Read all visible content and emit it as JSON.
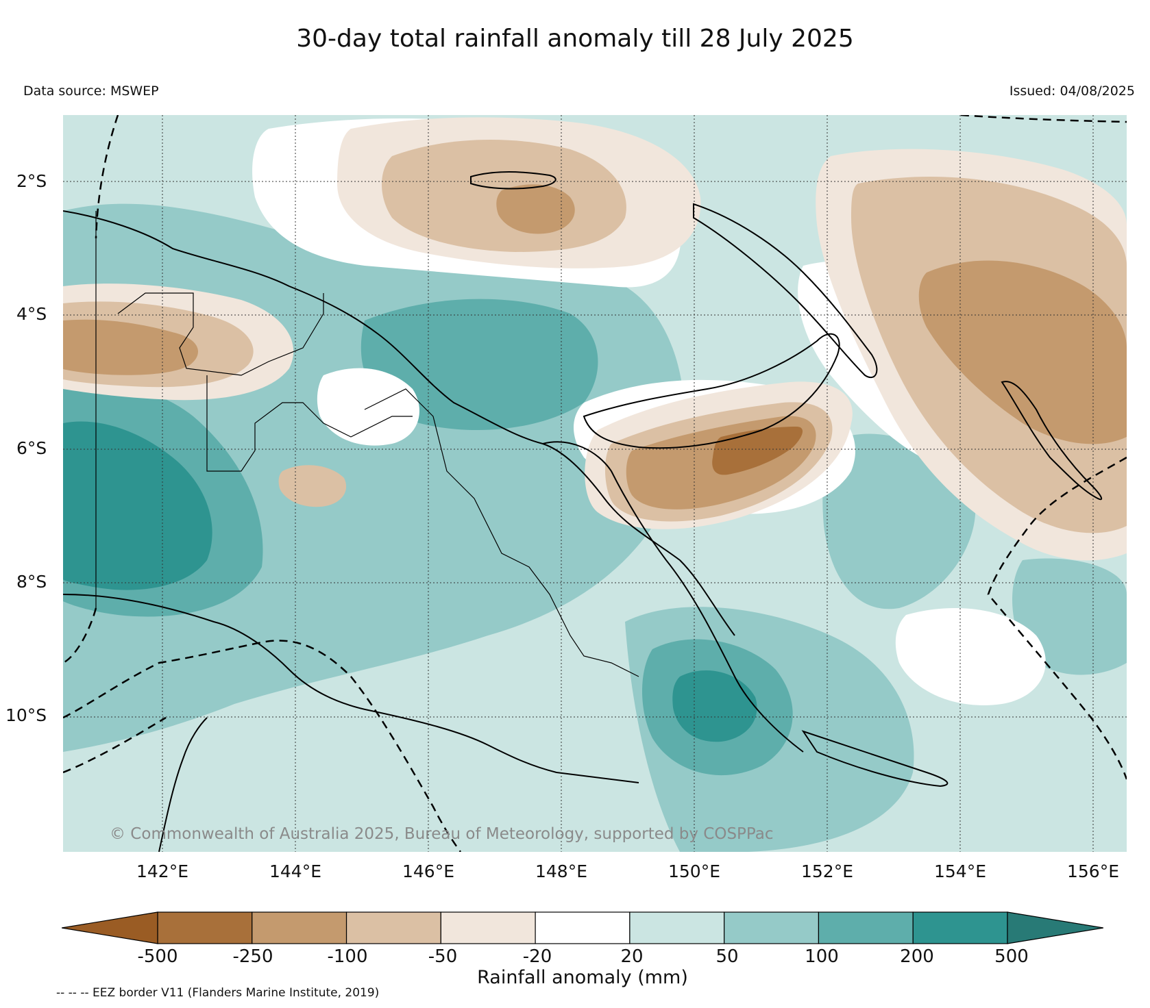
{
  "title": "30-day total rainfall anomaly till 28 July 2025",
  "data_source": "Data source: MSWEP",
  "issued": "Issued: 04/08/2025",
  "copyright": "© Commonwealth of Australia 2025, Bureau of Meteorology, supported by COSPPac",
  "eez_note": "-- -- -- EEZ border V11 (Flanders Marine Institute, 2019)",
  "map": {
    "lon_range": [
      140.6,
      156.6
    ],
    "lat_range": [
      -11.1,
      -0.1
    ],
    "lat_ticks": [
      {
        "value": -2,
        "label": "2°S"
      },
      {
        "value": -4,
        "label": "4°S"
      },
      {
        "value": -6,
        "label": "6°S"
      },
      {
        "value": -8,
        "label": "8°S"
      },
      {
        "value": -10,
        "label": "10°S"
      }
    ],
    "lon_ticks": [
      {
        "value": 142,
        "label": "142°E"
      },
      {
        "value": 144,
        "label": "144°E"
      },
      {
        "value": 146,
        "label": "146°E"
      },
      {
        "value": 148,
        "label": "148°E"
      },
      {
        "value": 150,
        "label": "150°E"
      },
      {
        "value": 152,
        "label": "152°E"
      },
      {
        "value": 154,
        "label": "154°E"
      },
      {
        "value": 156,
        "label": "156°E"
      }
    ],
    "grid": true,
    "colors": {
      "dry_extreme": "#9a5c24",
      "dry_250": "#a8703a",
      "dry_100": "#c49a6e",
      "dry_50": "#dbc0a4",
      "dry_20": "#f1e6dc",
      "neutral": "#ffffff",
      "wet_50": "#cbe5e2",
      "wet_100": "#95cac8",
      "wet_200": "#5eaeab",
      "wet_500": "#2e9490",
      "wet_extreme": "#287a76"
    }
  },
  "colorbar": {
    "label": "Rainfall anomaly (mm)",
    "ticks": [
      "-500",
      "-250",
      "-100",
      "-50",
      "-20",
      "20",
      "50",
      "100",
      "200",
      "500"
    ],
    "colors": [
      "#a8703a",
      "#c49a6e",
      "#dbc0a4",
      "#f1e6dc",
      "#ffffff",
      "#cbe5e2",
      "#95cac8",
      "#5eaeab",
      "#2e9490"
    ],
    "under_color": "#9a5c24",
    "over_color": "#287a76"
  }
}
